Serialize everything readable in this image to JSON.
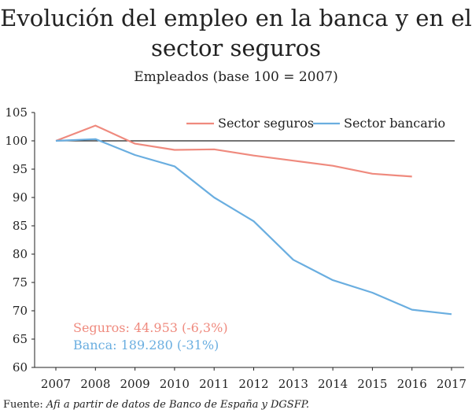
{
  "title_line1": "Evolución del empleo en la banca y en el",
  "title_line2": "sector seguros",
  "subtitle": "Empleados (base 100 = 2007)",
  "source_prefix": "Fuente: ",
  "source_text": "Afi a partir de datos de Banco de España y DGSFP.",
  "annotations": {
    "seguros": "Seguros: 44.953 (-6,3%)",
    "banca": "Banca:  189.280 (-31%)"
  },
  "colors": {
    "seguros": "#ef8a7e",
    "bancario": "#6aaee0",
    "reference": "#222222",
    "axis": "#222222"
  },
  "chart_data": {
    "type": "line",
    "title": "Evolución del empleo en la banca y en el sector seguros",
    "subtitle": "Empleados (base 100 = 2007)",
    "x": [
      "2007",
      "2008",
      "2009",
      "2010",
      "2011",
      "2012",
      "2013",
      "2014",
      "2015",
      "2016",
      "2017"
    ],
    "ylim": [
      60,
      105
    ],
    "yticks": [
      60,
      65,
      70,
      75,
      80,
      85,
      90,
      95,
      100,
      105
    ],
    "reference_line": 100,
    "legend_position": "top-right",
    "grid": false,
    "series": [
      {
        "name": "Sector seguros",
        "values": [
          100,
          102.7,
          99.5,
          98.4,
          98.5,
          97.4,
          96.5,
          95.6,
          94.2,
          93.7,
          null
        ]
      },
      {
        "name": "Sector bancario",
        "values": [
          100,
          100.3,
          97.5,
          95.5,
          90.0,
          85.8,
          79.0,
          75.4,
          73.2,
          70.2,
          69.4
        ]
      }
    ]
  }
}
